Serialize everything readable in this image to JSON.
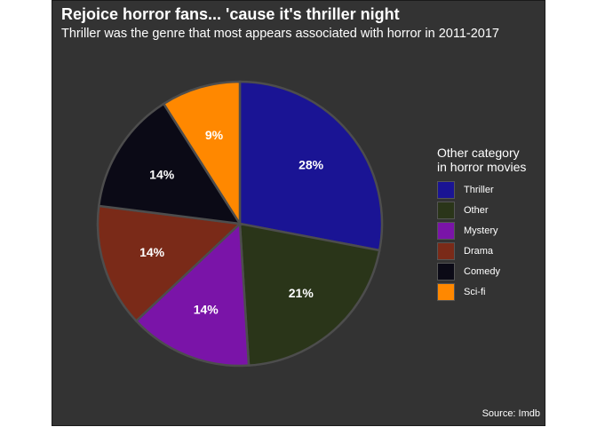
{
  "chart_data": {
    "type": "pie",
    "title": "Rejoice horror fans... 'cause it's thriller night",
    "subtitle": "Thriller was the genre that most appears associated with horror in 2011-2017",
    "caption": "Source: Imdb",
    "legend": {
      "title_lines": [
        "Other category",
        "in horror movies"
      ],
      "placement": "right"
    },
    "slices": [
      {
        "label": "Thriller",
        "value": 28,
        "display": "28%",
        "color": "#1a1494"
      },
      {
        "label": "Other",
        "value": 21,
        "display": "21%",
        "color": "#2a3519"
      },
      {
        "label": "Mystery",
        "value": 14,
        "display": "14%",
        "color": "#7a14a8"
      },
      {
        "label": "Drama",
        "value": 14,
        "display": "14%",
        "color": "#7a2a18"
      },
      {
        "label": "Comedy",
        "value": 14,
        "display": "14%",
        "color": "#0b0a16"
      },
      {
        "label": "Sci-fi",
        "value": 9,
        "display": "9%",
        "color": "#ff8800"
      }
    ]
  }
}
